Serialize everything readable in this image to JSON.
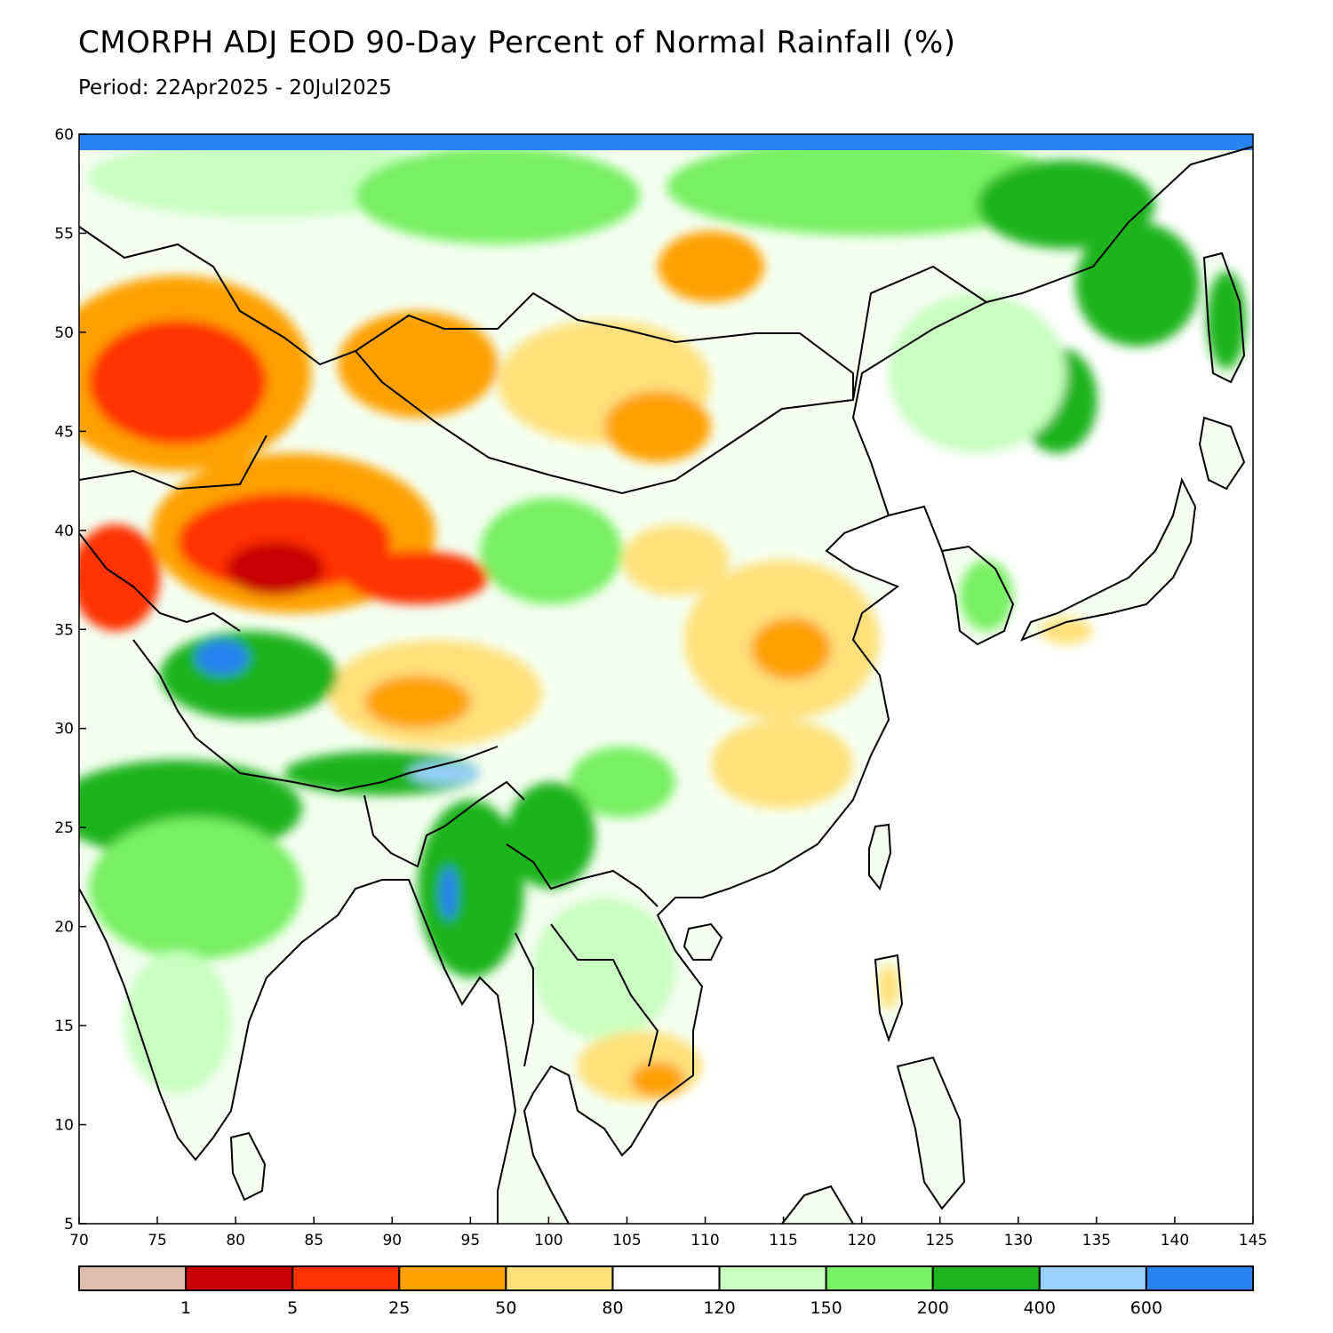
{
  "title": "CMORPH ADJ EOD 90-Day Percent of Normal Rainfall (%)",
  "subtitle": "Period: 22Apr2025 - 20Jul2025",
  "map": {
    "lon_range": [
      70,
      145
    ],
    "lat_range": [
      5,
      60
    ],
    "lon_ticks": [
      "70",
      "75",
      "80",
      "85",
      "90",
      "95",
      "100",
      "105",
      "110",
      "115",
      "120",
      "125",
      "130",
      "135",
      "140",
      "145"
    ],
    "lat_ticks": [
      "60",
      "55",
      "50",
      "45",
      "40",
      "35",
      "30",
      "25",
      "20",
      "15",
      "10",
      "5"
    ],
    "ocean_color": "#ffffff",
    "border_color": "#000000"
  },
  "colorbar": {
    "colors": [
      "#e0bcb0",
      "#c80000",
      "#ff3200",
      "#ffa000",
      "#ffe07a",
      "#ffffff",
      "#c8ffc0",
      "#78f064",
      "#1eb41e",
      "#96d2fa",
      "#2882f0"
    ],
    "labels": [
      "1",
      "5",
      "25",
      "50",
      "80",
      "120",
      "150",
      "200",
      "400",
      "600"
    ]
  }
}
